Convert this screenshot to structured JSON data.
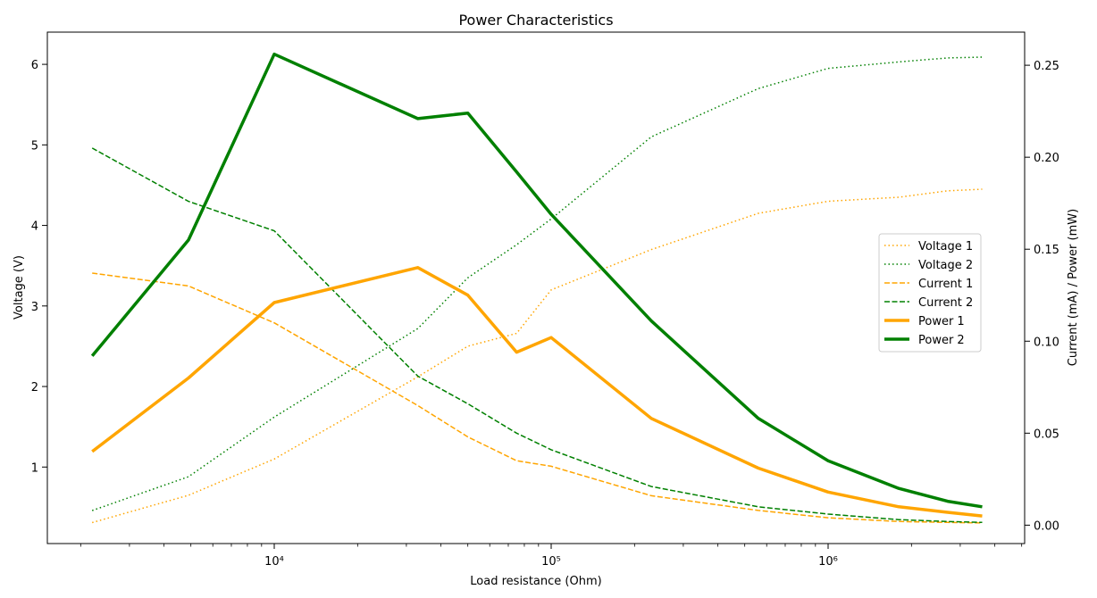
{
  "chart_data": {
    "type": "line",
    "title": "Power Characteristics",
    "xlabel": "Load resistance (Ohm)",
    "ylabel_left": "Voltage (V)",
    "ylabel_right": "Current (mA) / Power (mW)",
    "x_scale": "log",
    "x_tick_labels": [
      "10⁴",
      "10⁵",
      "10⁶"
    ],
    "x_tick_values": [
      10000,
      100000,
      1000000
    ],
    "y_left_ticks": [
      1,
      2,
      3,
      4,
      5,
      6
    ],
    "y_left_lim": [
      0.05,
      6.4
    ],
    "y_right_ticks": [
      "0.00",
      "0.05",
      "0.10",
      "0.15",
      "0.20",
      "0.25"
    ],
    "y_right_lim": [
      -0.01,
      0.268
    ],
    "legend_position": "center-right",
    "grid": false,
    "x": [
      2200,
      4900,
      10000,
      33000,
      50000,
      75000,
      100000,
      230000,
      560000,
      1000000,
      1800000,
      2700000,
      3600000
    ],
    "series": [
      {
        "name": "Voltage 1",
        "axis": "left",
        "style": "dotted",
        "color": "#FFA500",
        "width": 1.5,
        "values": [
          0.31,
          0.65,
          1.1,
          2.12,
          2.5,
          2.66,
          3.2,
          3.7,
          4.15,
          4.3,
          4.35,
          4.43,
          4.45
        ]
      },
      {
        "name": "Voltage 2",
        "axis": "left",
        "style": "dotted",
        "color": "#008000",
        "width": 1.5,
        "values": [
          0.46,
          0.88,
          1.62,
          2.72,
          3.35,
          3.76,
          4.08,
          5.1,
          5.7,
          5.95,
          6.03,
          6.08,
          6.09
        ]
      },
      {
        "name": "Current 1",
        "axis": "right",
        "style": "dashed",
        "color": "#FFA500",
        "width": 1.5,
        "values": [
          0.137,
          0.13,
          0.11,
          0.065,
          0.048,
          0.035,
          0.032,
          0.016,
          0.008,
          0.004,
          0.002,
          0.0015,
          0.0012
        ]
      },
      {
        "name": "Current 2",
        "axis": "right",
        "style": "dashed",
        "color": "#008000",
        "width": 1.5,
        "values": [
          0.205,
          0.176,
          0.16,
          0.081,
          0.066,
          0.05,
          0.041,
          0.021,
          0.01,
          0.006,
          0.003,
          0.002,
          0.0015
        ]
      },
      {
        "name": "Power 1",
        "axis": "right",
        "style": "solid",
        "color": "#FFA500",
        "width": 3.5,
        "values": [
          0.04,
          0.08,
          0.121,
          0.14,
          0.125,
          0.094,
          0.102,
          0.058,
          0.031,
          0.018,
          0.01,
          0.007,
          0.005
        ]
      },
      {
        "name": "Power 2",
        "axis": "right",
        "style": "solid",
        "color": "#008000",
        "width": 3.5,
        "values": [
          0.092,
          0.155,
          0.256,
          0.221,
          0.224,
          0.192,
          0.169,
          0.111,
          0.058,
          0.035,
          0.02,
          0.013,
          0.01
        ]
      }
    ]
  }
}
